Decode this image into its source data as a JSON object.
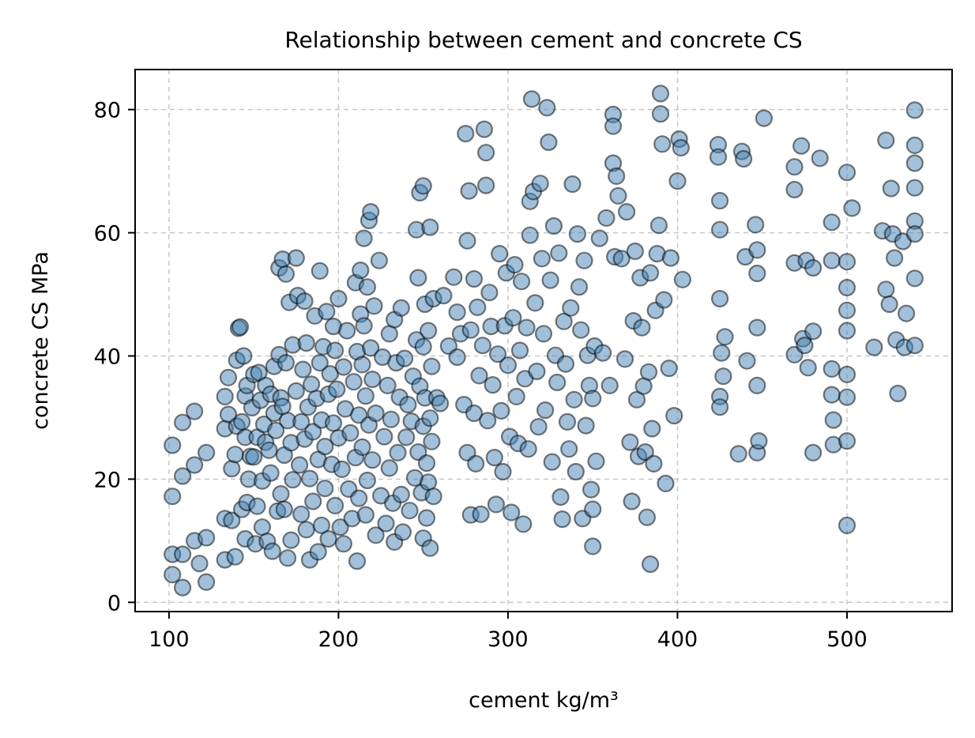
{
  "chart_data": {
    "type": "scatter",
    "title": "Relationship between cement and concrete CS",
    "xlabel": "cement kg/m³",
    "ylabel": "concrete CS MPa",
    "xlim": [
      80,
      562
    ],
    "ylim": [
      -1.5,
      86.5
    ],
    "xticks": [
      100,
      200,
      300,
      400,
      500
    ],
    "yticks": [
      0,
      20,
      40,
      60,
      80
    ],
    "grid": true,
    "marker_color": "#4682b4",
    "marker_edge_color": "#000000",
    "marker_alpha": 0.5,
    "points": [
      [
        102,
        25.5
      ],
      [
        102,
        17.2
      ],
      [
        102,
        7.8
      ],
      [
        102,
        4.5
      ],
      [
        108,
        2.4
      ],
      [
        108,
        7.8
      ],
      [
        108,
        20.5
      ],
      [
        108,
        29.2
      ],
      [
        115,
        22.3
      ],
      [
        115,
        31
      ],
      [
        115,
        10
      ],
      [
        118,
        6.3
      ],
      [
        122,
        24.3
      ],
      [
        122,
        10.5
      ],
      [
        122,
        3.3
      ],
      [
        133,
        33.4
      ],
      [
        133,
        28.2
      ],
      [
        133,
        13.6
      ],
      [
        133,
        6.9
      ],
      [
        135,
        36.5
      ],
      [
        135,
        30.5
      ],
      [
        137,
        21.7
      ],
      [
        137,
        13.3
      ],
      [
        139,
        7.4
      ],
      [
        139,
        24
      ],
      [
        140,
        39.3
      ],
      [
        140,
        28.6
      ],
      [
        141,
        44.5
      ],
      [
        142,
        44.7
      ],
      [
        143,
        29.3
      ],
      [
        143,
        15.1
      ],
      [
        144,
        40
      ],
      [
        145,
        33.5
      ],
      [
        145,
        26.8
      ],
      [
        145,
        10.3
      ],
      [
        146,
        35.2
      ],
      [
        146,
        16.2
      ],
      [
        147,
        20
      ],
      [
        148,
        23.7
      ],
      [
        149,
        31.6
      ],
      [
        150,
        37
      ],
      [
        150,
        23.6
      ],
      [
        151,
        9.5
      ],
      [
        152,
        26.8
      ],
      [
        152,
        15.6
      ],
      [
        153,
        37.3
      ],
      [
        154,
        32.8
      ],
      [
        155,
        19.7
      ],
      [
        155,
        12.2
      ],
      [
        156,
        28.9
      ],
      [
        157,
        35.2
      ],
      [
        157,
        26
      ],
      [
        158,
        9.9
      ],
      [
        159,
        24.7
      ],
      [
        160,
        21
      ],
      [
        160,
        33.8
      ],
      [
        161,
        8.3
      ],
      [
        162,
        30.7
      ],
      [
        162,
        38.3
      ],
      [
        163,
        27.9
      ],
      [
        164,
        14.8
      ],
      [
        165,
        54.3
      ],
      [
        165,
        40.2
      ],
      [
        166,
        33.2
      ],
      [
        166,
        17.6
      ],
      [
        167,
        55.7
      ],
      [
        167,
        31.8
      ],
      [
        168,
        23.9
      ],
      [
        168,
        15.1
      ],
      [
        169,
        53.3
      ],
      [
        169,
        38.9
      ],
      [
        170,
        29.5
      ],
      [
        170,
        7.2
      ],
      [
        171,
        48.7
      ],
      [
        172,
        25.9
      ],
      [
        172,
        10.1
      ],
      [
        173,
        41.8
      ],
      [
        173,
        19.9
      ],
      [
        175,
        55.9
      ],
      [
        175,
        34.3
      ],
      [
        176,
        49.8
      ],
      [
        177,
        22.3
      ],
      [
        178,
        29.3
      ],
      [
        178,
        14.3
      ],
      [
        179,
        37.8
      ],
      [
        180,
        48.9
      ],
      [
        180,
        26.5
      ],
      [
        181,
        42.1
      ],
      [
        181,
        11.8
      ],
      [
        182,
        31.7
      ],
      [
        183,
        20.1
      ],
      [
        183,
        6.9
      ],
      [
        184,
        35.4
      ],
      [
        185,
        27.7
      ],
      [
        185,
        16.4
      ],
      [
        186,
        46.5
      ],
      [
        187,
        33.1
      ],
      [
        188,
        23.2
      ],
      [
        188,
        8.2
      ],
      [
        189,
        53.8
      ],
      [
        189,
        38.9
      ],
      [
        190,
        29.6
      ],
      [
        190,
        12.5
      ],
      [
        191,
        41.5
      ],
      [
        192,
        25.3
      ],
      [
        192,
        18.5
      ],
      [
        193,
        47.2
      ],
      [
        194,
        33.8
      ],
      [
        194,
        10.3
      ],
      [
        195,
        37.1
      ],
      [
        196,
        22.4
      ],
      [
        197,
        44.8
      ],
      [
        197,
        29.1
      ],
      [
        198,
        15.7
      ],
      [
        198,
        40.9
      ],
      [
        199,
        34.6
      ],
      [
        200,
        49.3
      ],
      [
        200,
        26.7
      ],
      [
        201,
        12.2
      ],
      [
        202,
        21.6
      ],
      [
        203,
        38.2
      ],
      [
        203,
        9.5
      ],
      [
        204,
        31.4
      ],
      [
        205,
        44.1
      ],
      [
        206,
        18.4
      ],
      [
        207,
        27.5
      ],
      [
        208,
        13.6
      ],
      [
        209,
        35.8
      ],
      [
        210,
        51.9
      ],
      [
        210,
        23.5
      ],
      [
        211,
        40.7
      ],
      [
        211,
        6.7
      ],
      [
        212,
        30.4
      ],
      [
        212,
        16.9
      ],
      [
        213,
        46.8
      ],
      [
        213,
        53.9
      ],
      [
        214,
        38.6
      ],
      [
        214,
        25.2
      ],
      [
        215,
        59.1
      ],
      [
        215,
        44.9
      ],
      [
        216,
        33.5
      ],
      [
        216,
        14.2
      ],
      [
        217,
        51.2
      ],
      [
        217,
        19.8
      ],
      [
        218,
        28.8
      ],
      [
        218,
        62
      ],
      [
        219,
        63.4
      ],
      [
        219,
        41.3
      ],
      [
        220,
        36.2
      ],
      [
        220,
        23.1
      ],
      [
        221,
        48.1
      ],
      [
        222,
        30.7
      ],
      [
        222,
        10.9
      ],
      [
        224,
        55.5
      ],
      [
        225,
        17.3
      ],
      [
        226,
        39.8
      ],
      [
        227,
        26.9
      ],
      [
        228,
        12.8
      ],
      [
        229,
        35.2
      ],
      [
        230,
        43.6
      ],
      [
        230,
        21.8
      ],
      [
        231,
        29.7
      ],
      [
        232,
        16.1
      ],
      [
        233,
        45.9
      ],
      [
        233,
        9.8
      ],
      [
        234,
        38.9
      ],
      [
        235,
        24.3
      ],
      [
        236,
        33.3
      ],
      [
        237,
        47.8
      ],
      [
        237,
        17.5
      ],
      [
        238,
        11.4
      ],
      [
        239,
        39.6
      ],
      [
        240,
        26.8
      ],
      [
        241,
        32.1
      ],
      [
        242,
        14.9
      ],
      [
        243,
        29.4
      ],
      [
        244,
        36.7
      ],
      [
        245,
        20.2
      ],
      [
        246,
        60.5
      ],
      [
        246,
        42.6
      ],
      [
        247,
        52.7
      ],
      [
        247,
        24.4
      ],
      [
        248,
        66.5
      ],
      [
        248,
        35.1
      ],
      [
        249,
        17.8
      ],
      [
        250,
        67.6
      ],
      [
        250,
        28.6
      ],
      [
        250,
        41.5
      ],
      [
        250,
        10.4
      ],
      [
        251,
        48.4
      ],
      [
        251,
        33.2
      ],
      [
        252,
        22.6
      ],
      [
        252,
        13.7
      ],
      [
        253,
        44.1
      ],
      [
        253,
        19.5
      ],
      [
        254,
        60.9
      ],
      [
        254,
        29.9
      ],
      [
        254,
        8.8
      ],
      [
        255,
        38.3
      ],
      [
        255,
        26.1
      ],
      [
        256,
        49.3
      ],
      [
        256,
        17.2
      ],
      [
        258,
        33.2
      ],
      [
        260,
        32.3
      ],
      [
        262,
        49.8
      ],
      [
        265,
        41.6
      ],
      [
        268,
        52.8
      ],
      [
        270,
        39.8
      ],
      [
        270,
        47.1
      ],
      [
        272,
        43.6
      ],
      [
        274,
        32.1
      ],
      [
        275,
        76.1
      ],
      [
        276,
        58.7
      ],
      [
        276,
        24.3
      ],
      [
        277,
        66.8
      ],
      [
        278,
        44.2
      ],
      [
        278,
        14.2
      ],
      [
        280,
        52.5
      ],
      [
        280,
        30.7
      ],
      [
        281,
        22.5
      ],
      [
        282,
        47.9
      ],
      [
        283,
        36.8
      ],
      [
        284,
        14.3
      ],
      [
        285,
        41.7
      ],
      [
        286,
        76.8
      ],
      [
        287,
        67.7
      ],
      [
        287,
        73
      ],
      [
        288,
        29.5
      ],
      [
        289,
        50.3
      ],
      [
        290,
        44.8
      ],
      [
        291,
        35.3
      ],
      [
        292,
        23.5
      ],
      [
        293,
        15.9
      ],
      [
        294,
        40.3
      ],
      [
        295,
        56.6
      ],
      [
        296,
        31.1
      ],
      [
        297,
        21.2
      ],
      [
        298,
        44.9
      ],
      [
        299,
        53.5
      ],
      [
        300,
        38.5
      ],
      [
        301,
        26.9
      ],
      [
        302,
        14.6
      ],
      [
        303,
        46.2
      ],
      [
        304,
        54.8
      ],
      [
        305,
        33.4
      ],
      [
        306,
        25.8
      ],
      [
        307,
        40.9
      ],
      [
        308,
        52.1
      ],
      [
        309,
        12.7
      ],
      [
        310,
        36.3
      ],
      [
        311,
        44.6
      ],
      [
        312,
        24.9
      ],
      [
        313,
        65.1
      ],
      [
        313,
        59.6
      ],
      [
        314,
        81.7
      ],
      [
        315,
        66.7
      ],
      [
        316,
        48.6
      ],
      [
        317,
        37.5
      ],
      [
        318,
        28.5
      ],
      [
        319,
        68
      ],
      [
        320,
        55.8
      ],
      [
        321,
        43.6
      ],
      [
        322,
        31.2
      ],
      [
        323,
        80.3
      ],
      [
        324,
        74.7
      ],
      [
        325,
        52.3
      ],
      [
        326,
        22.8
      ],
      [
        327,
        61.1
      ],
      [
        328,
        40.1
      ],
      [
        329,
        35.7
      ],
      [
        330,
        56.7
      ],
      [
        331,
        17.1
      ],
      [
        332,
        13.5
      ],
      [
        333,
        45.6
      ],
      [
        334,
        38.7
      ],
      [
        335,
        29.3
      ],
      [
        336,
        24.9
      ],
      [
        337,
        47.8
      ],
      [
        338,
        67.9
      ],
      [
        339,
        32.9
      ],
      [
        340,
        21.2
      ],
      [
        341,
        59.8
      ],
      [
        342,
        51.2
      ],
      [
        343,
        44.2
      ],
      [
        344,
        13.6
      ],
      [
        345,
        55.5
      ],
      [
        346,
        28.7
      ],
      [
        347,
        40.1
      ],
      [
        348,
        35.2
      ],
      [
        349,
        18.3
      ],
      [
        350,
        9.1
      ],
      [
        350,
        33.1
      ],
      [
        350,
        15.1
      ],
      [
        351,
        41.6
      ],
      [
        352,
        22.9
      ],
      [
        354,
        59.1
      ],
      [
        356,
        40.5
      ],
      [
        358,
        62.4
      ],
      [
        360,
        35.2
      ],
      [
        362,
        71.3
      ],
      [
        362,
        79.2
      ],
      [
        362,
        77.3
      ],
      [
        363,
        56.1
      ],
      [
        364,
        69.2
      ],
      [
        365,
        66
      ],
      [
        367,
        55.8
      ],
      [
        369,
        39.5
      ],
      [
        370,
        63.4
      ],
      [
        372,
        26
      ],
      [
        373,
        16.4
      ],
      [
        374,
        45.7
      ],
      [
        375,
        57
      ],
      [
        376,
        32.9
      ],
      [
        377,
        23.7
      ],
      [
        378,
        52.7
      ],
      [
        379,
        44.6
      ],
      [
        380,
        35.1
      ],
      [
        381,
        24.4
      ],
      [
        382,
        13.8
      ],
      [
        383,
        37.4
      ],
      [
        384,
        53.5
      ],
      [
        384,
        6.2
      ],
      [
        385,
        28.2
      ],
      [
        386,
        22.5
      ],
      [
        387,
        47.4
      ],
      [
        388,
        56.6
      ],
      [
        389,
        61.2
      ],
      [
        390,
        82.6
      ],
      [
        390,
        79.3
      ],
      [
        391,
        74.4
      ],
      [
        392,
        49.1
      ],
      [
        393,
        19.3
      ],
      [
        395,
        38
      ],
      [
        396,
        55.9
      ],
      [
        398,
        30.3
      ],
      [
        400,
        68.4
      ],
      [
        401,
        75.2
      ],
      [
        402,
        73.8
      ],
      [
        403,
        52.4
      ],
      [
        424,
        74.3
      ],
      [
        424,
        72.3
      ],
      [
        425,
        65.2
      ],
      [
        425,
        60.5
      ],
      [
        425,
        49.3
      ],
      [
        425,
        33.4
      ],
      [
        425,
        31.7
      ],
      [
        426,
        40.5
      ],
      [
        427,
        36.7
      ],
      [
        428,
        43.1
      ],
      [
        436,
        24.1
      ],
      [
        438,
        73.2
      ],
      [
        439,
        72
      ],
      [
        440,
        56.1
      ],
      [
        441,
        39.2
      ],
      [
        446,
        61.3
      ],
      [
        447,
        57.2
      ],
      [
        447,
        53.4
      ],
      [
        447,
        44.6
      ],
      [
        447,
        35.2
      ],
      [
        447,
        24.3
      ],
      [
        448,
        26.2
      ],
      [
        451,
        78.6
      ],
      [
        469,
        70.7
      ],
      [
        469,
        67
      ],
      [
        469,
        55.1
      ],
      [
        469,
        40.2
      ],
      [
        473,
        74.1
      ],
      [
        474,
        42.8
      ],
      [
        475,
        41.7
      ],
      [
        476,
        55.5
      ],
      [
        477,
        38.1
      ],
      [
        480,
        54.3
      ],
      [
        480,
        44
      ],
      [
        480,
        24.3
      ],
      [
        484,
        72.1
      ],
      [
        491,
        61.7
      ],
      [
        491,
        55.5
      ],
      [
        491,
        37.9
      ],
      [
        491,
        33.7
      ],
      [
        492,
        25.6
      ],
      [
        492,
        29.6
      ],
      [
        500,
        69.8
      ],
      [
        500,
        55.3
      ],
      [
        500,
        51.1
      ],
      [
        500,
        47.4
      ],
      [
        500,
        44.1
      ],
      [
        500,
        37
      ],
      [
        500,
        33.3
      ],
      [
        500,
        26.2
      ],
      [
        500,
        12.5
      ],
      [
        503,
        64
      ],
      [
        516,
        41.4
      ],
      [
        521,
        60.3
      ],
      [
        523,
        75
      ],
      [
        523,
        50.8
      ],
      [
        525,
        48.4
      ],
      [
        526,
        67.2
      ],
      [
        527,
        59.8
      ],
      [
        528,
        55.9
      ],
      [
        529,
        42.6
      ],
      [
        530,
        33.9
      ],
      [
        533,
        58.6
      ],
      [
        534,
        41.4
      ],
      [
        535,
        46.9
      ],
      [
        540,
        79.9
      ],
      [
        540,
        74.2
      ],
      [
        540,
        71.3
      ],
      [
        540,
        67.3
      ],
      [
        540,
        61.9
      ],
      [
        540,
        59.8
      ],
      [
        540,
        52.6
      ],
      [
        540,
        41.7
      ]
    ]
  }
}
